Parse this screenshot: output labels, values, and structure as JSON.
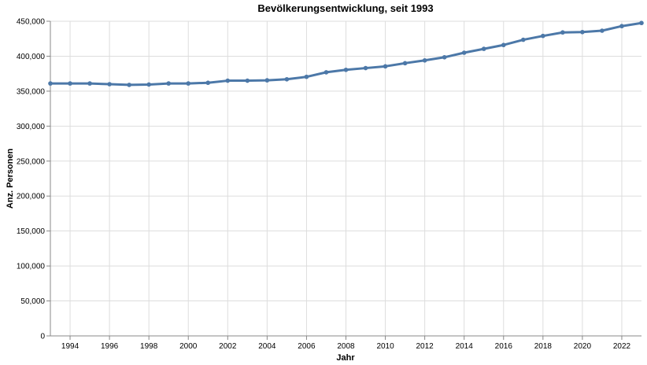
{
  "chart_data": {
    "type": "line",
    "title": "Bevölkerungsentwicklung, seit 1993",
    "xlabel": "Jahr",
    "ylabel": "Anz. Personen",
    "xlim": [
      1993,
      2023
    ],
    "ylim": [
      0,
      450000
    ],
    "x_ticks": [
      1994,
      1996,
      1998,
      2000,
      2002,
      2004,
      2006,
      2008,
      2010,
      2012,
      2014,
      2016,
      2018,
      2020,
      2022
    ],
    "x_tick_labels": [
      "1994",
      "1996",
      "1998",
      "2000",
      "2002",
      "2004",
      "2006",
      "2008",
      "2010",
      "2012",
      "2014",
      "2016",
      "2018",
      "2020",
      "2022"
    ],
    "y_ticks": [
      0,
      50000,
      100000,
      150000,
      200000,
      250000,
      300000,
      350000,
      400000,
      450000
    ],
    "y_tick_labels": [
      "0",
      "50,000",
      "100,000",
      "150,000",
      "200,000",
      "250,000",
      "300,000",
      "350,000",
      "400,000",
      "450,000"
    ],
    "grid": true,
    "line_color": "#4c78a8",
    "series": [
      {
        "x": [
          1993,
          1994,
          1995,
          1996,
          1997,
          1998,
          1999,
          2000,
          2001,
          2002,
          2003,
          2004,
          2005,
          2006,
          2007,
          2008,
          2009,
          2010,
          2011,
          2012,
          2013,
          2014,
          2015,
          2016,
          2017,
          2018,
          2019,
          2020,
          2021,
          2022,
          2023
        ],
        "values": [
          361000,
          361000,
          361000,
          360000,
          359000,
          359500,
          361000,
          361000,
          362000,
          365000,
          365000,
          365500,
          367000,
          370500,
          377000,
          380500,
          383000,
          385500,
          390000,
          394000,
          398500,
          405000,
          410500,
          416000,
          423500,
          429000,
          434000,
          434500,
          436500,
          443000,
          447500
        ]
      }
    ]
  }
}
